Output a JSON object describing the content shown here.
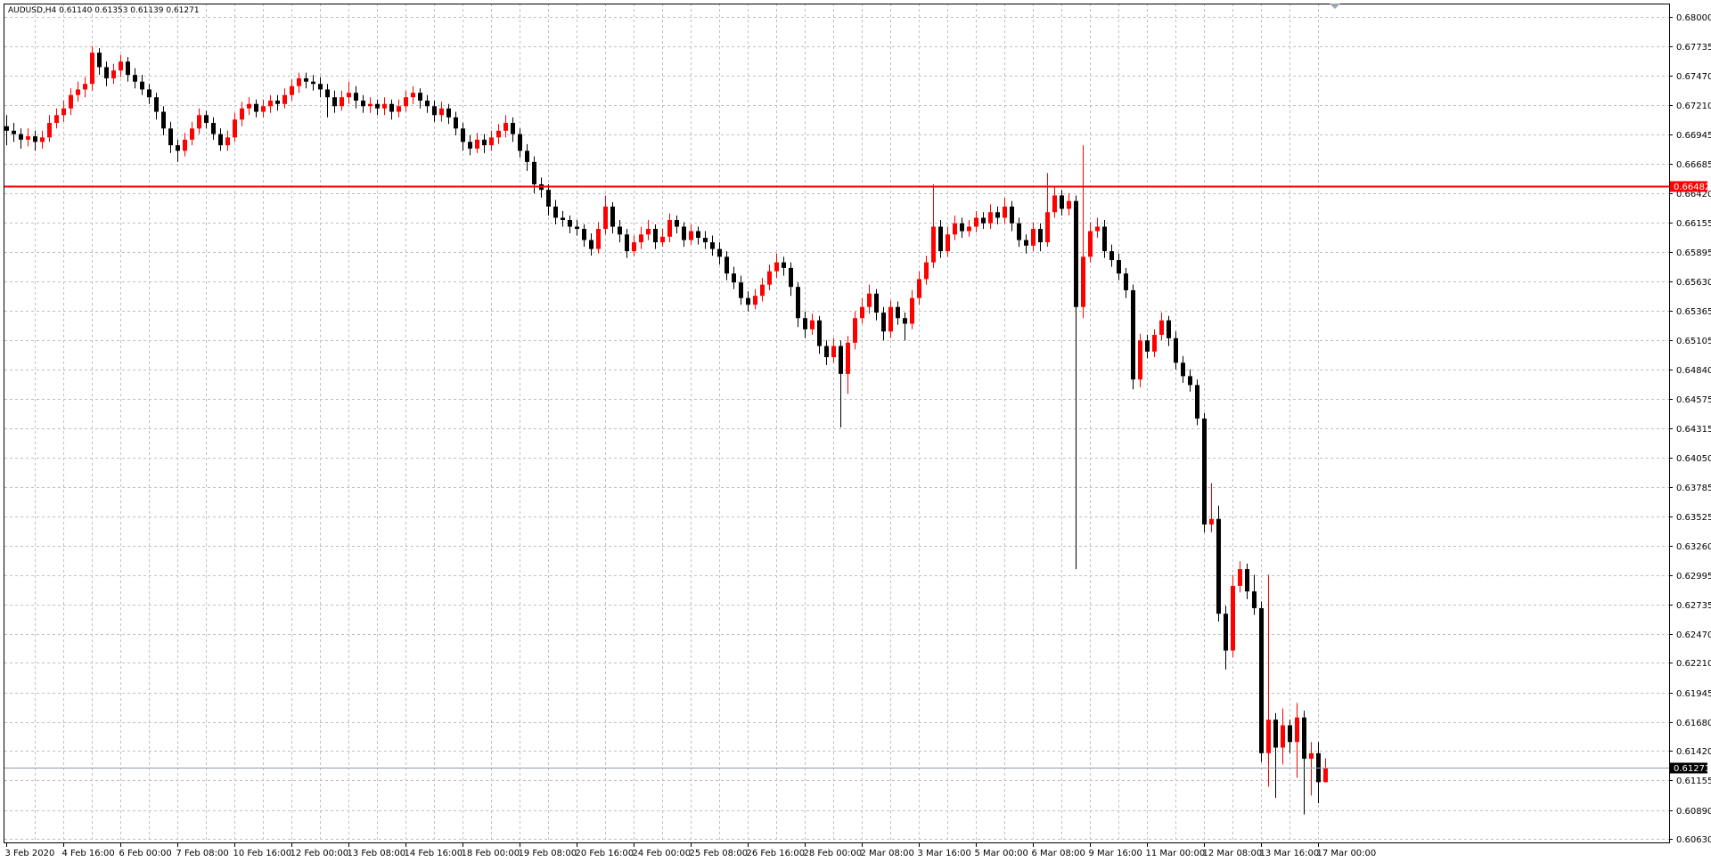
{
  "chart_data": {
    "type": "candlestick",
    "title": "AUDUSD,H4  0.61140 0.61353 0.61139 0.61271",
    "up_color": "#ff0000",
    "down_color": "#000000",
    "grid": true,
    "grid_color": "#c0c0c0",
    "ylim": [
      0.606,
      0.6812
    ],
    "yticks": [
      {
        "value": 0.68,
        "label": "0.68000"
      },
      {
        "value": 0.67735,
        "label": "0.67735"
      },
      {
        "value": 0.6747,
        "label": "0.67470"
      },
      {
        "value": 0.6721,
        "label": "0.67210"
      },
      {
        "value": 0.66945,
        "label": "0.66945"
      },
      {
        "value": 0.66685,
        "label": "0.66685"
      },
      {
        "value": 0.6642,
        "label": "0.66420"
      },
      {
        "value": 0.66155,
        "label": "0.66155"
      },
      {
        "value": 0.65895,
        "label": "0.65895"
      },
      {
        "value": 0.6563,
        "label": "0.65630"
      },
      {
        "value": 0.65365,
        "label": "0.65365"
      },
      {
        "value": 0.65105,
        "label": "0.65105"
      },
      {
        "value": 0.6484,
        "label": "0.64840"
      },
      {
        "value": 0.64575,
        "label": "0.64575"
      },
      {
        "value": 0.64315,
        "label": "0.64315"
      },
      {
        "value": 0.6405,
        "label": "0.64050"
      },
      {
        "value": 0.63785,
        "label": "0.63785"
      },
      {
        "value": 0.63525,
        "label": "0.63525"
      },
      {
        "value": 0.6326,
        "label": "0.63260"
      },
      {
        "value": 0.62995,
        "label": "0.62995"
      },
      {
        "value": 0.62735,
        "label": "0.62735"
      },
      {
        "value": 0.6247,
        "label": "0.62470"
      },
      {
        "value": 0.6221,
        "label": "0.62210"
      },
      {
        "value": 0.61945,
        "label": "0.61945"
      },
      {
        "value": 0.6168,
        "label": "0.61680"
      },
      {
        "value": 0.6142,
        "label": "0.61420"
      },
      {
        "value": 0.61155,
        "label": "0.61155"
      },
      {
        "value": 0.6089,
        "label": "0.60890"
      },
      {
        "value": 0.6063,
        "label": "0.60630"
      }
    ],
    "hlines": [
      {
        "value": 0.66482,
        "label": "0.66482",
        "color": "#ff0000"
      }
    ],
    "price_line": {
      "value": 0.61271,
      "label": "0.61271",
      "color": "#8c9aae"
    },
    "categories": [
      "3 Feb 2020",
      null,
      null,
      null,
      null,
      null,
      null,
      null,
      "4 Feb 16:00",
      null,
      null,
      null,
      null,
      null,
      null,
      null,
      "6 Feb 00:00",
      null,
      null,
      null,
      null,
      null,
      null,
      null,
      "7 Feb 08:00",
      null,
      null,
      null,
      null,
      null,
      null,
      null,
      "10 Feb 16:00",
      null,
      null,
      null,
      null,
      null,
      null,
      null,
      "12 Feb 00:00",
      null,
      null,
      null,
      null,
      null,
      null,
      null,
      "13 Feb 08:00",
      null,
      null,
      null,
      null,
      null,
      null,
      null,
      "14 Feb 16:00",
      null,
      null,
      null,
      null,
      null,
      null,
      null,
      "18 Feb 00:00",
      null,
      null,
      null,
      null,
      null,
      null,
      null,
      "19 Feb 08:00",
      null,
      null,
      null,
      null,
      null,
      null,
      null,
      "20 Feb 16:00",
      null,
      null,
      null,
      null,
      null,
      null,
      null,
      "24 Feb 00:00",
      null,
      null,
      null,
      null,
      null,
      null,
      null,
      "25 Feb 08:00",
      null,
      null,
      null,
      null,
      null,
      null,
      null,
      "26 Feb 16:00",
      null,
      null,
      null,
      null,
      null,
      null,
      null,
      "28 Feb 00:00",
      null,
      null,
      null,
      null,
      null,
      null,
      null,
      "2 Mar 08:00",
      null,
      null,
      null,
      null,
      null,
      null,
      null,
      "3 Mar 16:00",
      null,
      null,
      null,
      null,
      null,
      null,
      null,
      "5 Mar 00:00",
      null,
      null,
      null,
      null,
      null,
      null,
      null,
      "6 Mar 08:00",
      null,
      null,
      null,
      null,
      null,
      null,
      null,
      "9 Mar 16:00",
      null,
      null,
      null,
      null,
      null,
      null,
      null,
      "11 Mar 00:00",
      null,
      null,
      null,
      null,
      null,
      null,
      null,
      "12 Mar 08:00",
      null,
      null,
      null,
      null,
      null,
      null,
      null,
      "13 Mar 16:00",
      null,
      null,
      null,
      null,
      null,
      null,
      null,
      "17 Mar 00:00",
      null
    ],
    "ohlc": [
      [
        0.6702,
        0.6712,
        0.6685,
        0.6698
      ],
      [
        0.6698,
        0.6705,
        0.6688,
        0.6695
      ],
      [
        0.6695,
        0.67,
        0.6682,
        0.669
      ],
      [
        0.669,
        0.67,
        0.6684,
        0.6693
      ],
      [
        0.6693,
        0.6698,
        0.668,
        0.6688
      ],
      [
        0.6688,
        0.6698,
        0.6682,
        0.6692
      ],
      [
        0.6692,
        0.6712,
        0.6688,
        0.6705
      ],
      [
        0.6705,
        0.6718,
        0.67,
        0.6712
      ],
      [
        0.6712,
        0.6725,
        0.6706,
        0.6718
      ],
      [
        0.6718,
        0.6736,
        0.6712,
        0.673
      ],
      [
        0.673,
        0.6742,
        0.6724,
        0.6735
      ],
      [
        0.6735,
        0.6746,
        0.6728,
        0.674
      ],
      [
        0.674,
        0.6774,
        0.6734,
        0.6768
      ],
      [
        0.6768,
        0.6772,
        0.6748,
        0.6755
      ],
      [
        0.6755,
        0.676,
        0.6738,
        0.6745
      ],
      [
        0.6745,
        0.6758,
        0.674,
        0.6752
      ],
      [
        0.6752,
        0.6766,
        0.6746,
        0.676
      ],
      [
        0.676,
        0.6764,
        0.6742,
        0.6748
      ],
      [
        0.6748,
        0.6754,
        0.6736,
        0.6742
      ],
      [
        0.6742,
        0.6748,
        0.673,
        0.6735
      ],
      [
        0.6735,
        0.674,
        0.6722,
        0.6728
      ],
      [
        0.6728,
        0.6732,
        0.6708,
        0.6715
      ],
      [
        0.6715,
        0.672,
        0.6694,
        0.67
      ],
      [
        0.67,
        0.6706,
        0.6678,
        0.6685
      ],
      [
        0.6685,
        0.669,
        0.667,
        0.668
      ],
      [
        0.668,
        0.6696,
        0.6675,
        0.669
      ],
      [
        0.669,
        0.6706,
        0.6685,
        0.67
      ],
      [
        0.67,
        0.6718,
        0.6695,
        0.6712
      ],
      [
        0.6712,
        0.6716,
        0.67,
        0.6705
      ],
      [
        0.6705,
        0.671,
        0.669,
        0.6695
      ],
      [
        0.6695,
        0.67,
        0.668,
        0.6685
      ],
      [
        0.6685,
        0.6698,
        0.668,
        0.6692
      ],
      [
        0.6692,
        0.6714,
        0.6688,
        0.6708
      ],
      [
        0.6708,
        0.6724,
        0.6702,
        0.6718
      ],
      [
        0.6718,
        0.6728,
        0.6712,
        0.6722
      ],
      [
        0.6722,
        0.6726,
        0.671,
        0.6715
      ],
      [
        0.6715,
        0.6726,
        0.671,
        0.672
      ],
      [
        0.672,
        0.673,
        0.6714,
        0.6725
      ],
      [
        0.6725,
        0.673,
        0.6716,
        0.6722
      ],
      [
        0.6722,
        0.6736,
        0.6718,
        0.673
      ],
      [
        0.673,
        0.6744,
        0.6725,
        0.6738
      ],
      [
        0.6738,
        0.675,
        0.6732,
        0.6745
      ],
      [
        0.6745,
        0.675,
        0.6736,
        0.6742
      ],
      [
        0.6742,
        0.6748,
        0.6734,
        0.674
      ],
      [
        0.674,
        0.6746,
        0.6728,
        0.6735
      ],
      [
        0.6735,
        0.674,
        0.671,
        0.6728
      ],
      [
        0.6728,
        0.6734,
        0.6714,
        0.672
      ],
      [
        0.672,
        0.6734,
        0.6716,
        0.6728
      ],
      [
        0.6728,
        0.6742,
        0.6722,
        0.6732
      ],
      [
        0.6732,
        0.6738,
        0.6718,
        0.6725
      ],
      [
        0.6725,
        0.673,
        0.6714,
        0.672
      ],
      [
        0.672,
        0.6728,
        0.6714,
        0.6722
      ],
      [
        0.6722,
        0.6726,
        0.6712,
        0.6718
      ],
      [
        0.6718,
        0.6728,
        0.6712,
        0.6722
      ],
      [
        0.6722,
        0.6726,
        0.6708,
        0.6715
      ],
      [
        0.6715,
        0.6726,
        0.671,
        0.672
      ],
      [
        0.672,
        0.6734,
        0.6715,
        0.6728
      ],
      [
        0.6728,
        0.6738,
        0.6722,
        0.6732
      ],
      [
        0.6732,
        0.6736,
        0.6718,
        0.6725
      ],
      [
        0.6725,
        0.673,
        0.6714,
        0.672
      ],
      [
        0.672,
        0.6725,
        0.6706,
        0.6712
      ],
      [
        0.6712,
        0.6724,
        0.6706,
        0.6718
      ],
      [
        0.6718,
        0.6722,
        0.6704,
        0.671
      ],
      [
        0.671,
        0.6715,
        0.6694,
        0.67
      ],
      [
        0.67,
        0.6705,
        0.668,
        0.6688
      ],
      [
        0.6688,
        0.6694,
        0.6676,
        0.6682
      ],
      [
        0.6682,
        0.6696,
        0.6678,
        0.669
      ],
      [
        0.669,
        0.6695,
        0.6678,
        0.6685
      ],
      [
        0.6685,
        0.6698,
        0.668,
        0.6692
      ],
      [
        0.6692,
        0.6704,
        0.6686,
        0.6698
      ],
      [
        0.6698,
        0.6712,
        0.6692,
        0.6705
      ],
      [
        0.6705,
        0.671,
        0.6688,
        0.6695
      ],
      [
        0.6695,
        0.67,
        0.6674,
        0.668
      ],
      [
        0.668,
        0.6686,
        0.6662,
        0.667
      ],
      [
        0.667,
        0.6675,
        0.6642,
        0.665
      ],
      [
        0.665,
        0.6656,
        0.6638,
        0.6645
      ],
      [
        0.6645,
        0.665,
        0.6622,
        0.663
      ],
      [
        0.663,
        0.6636,
        0.6614,
        0.662
      ],
      [
        0.662,
        0.6626,
        0.6612,
        0.6618
      ],
      [
        0.6618,
        0.6622,
        0.6606,
        0.6612
      ],
      [
        0.6612,
        0.6618,
        0.6604,
        0.661
      ],
      [
        0.661,
        0.6614,
        0.6594,
        0.66
      ],
      [
        0.66,
        0.6606,
        0.6586,
        0.6592
      ],
      [
        0.6592,
        0.6616,
        0.6588,
        0.661
      ],
      [
        0.661,
        0.664,
        0.6605,
        0.663
      ],
      [
        0.663,
        0.6634,
        0.6606,
        0.6612
      ],
      [
        0.6612,
        0.6618,
        0.6598,
        0.6605
      ],
      [
        0.6605,
        0.661,
        0.6584,
        0.659
      ],
      [
        0.659,
        0.6604,
        0.6586,
        0.6598
      ],
      [
        0.6598,
        0.6612,
        0.6592,
        0.6605
      ],
      [
        0.6605,
        0.6618,
        0.66,
        0.661
      ],
      [
        0.661,
        0.6614,
        0.6592,
        0.6598
      ],
      [
        0.6598,
        0.661,
        0.6594,
        0.6603
      ],
      [
        0.6603,
        0.6624,
        0.6598,
        0.6618
      ],
      [
        0.6618,
        0.6622,
        0.6606,
        0.6612
      ],
      [
        0.6612,
        0.6616,
        0.6594,
        0.66
      ],
      [
        0.66,
        0.6614,
        0.6596,
        0.6608
      ],
      [
        0.6608,
        0.6612,
        0.6596,
        0.6602
      ],
      [
        0.6602,
        0.6608,
        0.6592,
        0.6598
      ],
      [
        0.6598,
        0.6604,
        0.6586,
        0.6592
      ],
      [
        0.6592,
        0.6598,
        0.6578,
        0.6585
      ],
      [
        0.6585,
        0.659,
        0.6564,
        0.657
      ],
      [
        0.657,
        0.6576,
        0.6556,
        0.6562
      ],
      [
        0.6562,
        0.6568,
        0.6542,
        0.6548
      ],
      [
        0.6548,
        0.6554,
        0.6536,
        0.6542
      ],
      [
        0.6542,
        0.6556,
        0.6538,
        0.655
      ],
      [
        0.655,
        0.6566,
        0.6545,
        0.656
      ],
      [
        0.656,
        0.6578,
        0.6555,
        0.6572
      ],
      [
        0.6572,
        0.6588,
        0.6566,
        0.658
      ],
      [
        0.658,
        0.6585,
        0.6568,
        0.6575
      ],
      [
        0.6575,
        0.658,
        0.655,
        0.6558
      ],
      [
        0.6558,
        0.6562,
        0.6522,
        0.653
      ],
      [
        0.653,
        0.6536,
        0.6512,
        0.652
      ],
      [
        0.652,
        0.6534,
        0.6515,
        0.6528
      ],
      [
        0.6528,
        0.6532,
        0.6498,
        0.6505
      ],
      [
        0.6505,
        0.651,
        0.6488,
        0.6495
      ],
      [
        0.6495,
        0.6512,
        0.649,
        0.6505
      ],
      [
        0.6505,
        0.651,
        0.6432,
        0.648
      ],
      [
        0.648,
        0.6514,
        0.6462,
        0.6508
      ],
      [
        0.6508,
        0.6536,
        0.6502,
        0.653
      ],
      [
        0.653,
        0.6548,
        0.6525,
        0.654
      ],
      [
        0.654,
        0.656,
        0.6534,
        0.6552
      ],
      [
        0.6552,
        0.6556,
        0.6528,
        0.6535
      ],
      [
        0.6535,
        0.654,
        0.651,
        0.6518
      ],
      [
        0.6518,
        0.6546,
        0.6512,
        0.654
      ],
      [
        0.654,
        0.6545,
        0.6524,
        0.653
      ],
      [
        0.653,
        0.6535,
        0.651,
        0.6525
      ],
      [
        0.6525,
        0.6555,
        0.652,
        0.6548
      ],
      [
        0.6548,
        0.6572,
        0.6542,
        0.6565
      ],
      [
        0.6565,
        0.6586,
        0.656,
        0.658
      ],
      [
        0.658,
        0.665,
        0.6575,
        0.6612
      ],
      [
        0.6612,
        0.6618,
        0.6584,
        0.659
      ],
      [
        0.659,
        0.6612,
        0.6585,
        0.6605
      ],
      [
        0.6605,
        0.6622,
        0.66,
        0.6615
      ],
      [
        0.6615,
        0.662,
        0.6602,
        0.6608
      ],
      [
        0.6608,
        0.6618,
        0.6603,
        0.6612
      ],
      [
        0.6612,
        0.6626,
        0.6607,
        0.662
      ],
      [
        0.662,
        0.6625,
        0.661,
        0.6615
      ],
      [
        0.6615,
        0.6632,
        0.661,
        0.6625
      ],
      [
        0.6625,
        0.663,
        0.6614,
        0.662
      ],
      [
        0.662,
        0.6638,
        0.6615,
        0.663
      ],
      [
        0.663,
        0.6635,
        0.6608,
        0.6615
      ],
      [
        0.6615,
        0.662,
        0.6594,
        0.66
      ],
      [
        0.66,
        0.6605,
        0.6588,
        0.6595
      ],
      [
        0.6595,
        0.6616,
        0.659,
        0.661
      ],
      [
        0.661,
        0.6615,
        0.659,
        0.6598
      ],
      [
        0.6598,
        0.666,
        0.6594,
        0.6625
      ],
      [
        0.6625,
        0.6648,
        0.662,
        0.664
      ],
      [
        0.664,
        0.6645,
        0.6622,
        0.6628
      ],
      [
        0.6628,
        0.6642,
        0.6622,
        0.6635
      ],
      [
        0.6635,
        0.664,
        0.6305,
        0.654
      ],
      [
        0.654,
        0.6685,
        0.653,
        0.6585
      ],
      [
        0.6585,
        0.6616,
        0.658,
        0.6608
      ],
      [
        0.6608,
        0.662,
        0.6602,
        0.6612
      ],
      [
        0.6612,
        0.6618,
        0.6584,
        0.659
      ],
      [
        0.659,
        0.6596,
        0.6576,
        0.6582
      ],
      [
        0.6582,
        0.6588,
        0.6564,
        0.657
      ],
      [
        0.657,
        0.6575,
        0.6548,
        0.6555
      ],
      [
        0.6555,
        0.656,
        0.6466,
        0.6475
      ],
      [
        0.6475,
        0.6516,
        0.6468,
        0.651
      ],
      [
        0.651,
        0.6515,
        0.6494,
        0.65
      ],
      [
        0.65,
        0.652,
        0.6495,
        0.6515
      ],
      [
        0.6515,
        0.6535,
        0.651,
        0.6528
      ],
      [
        0.6528,
        0.6532,
        0.6505,
        0.6512
      ],
      [
        0.6512,
        0.6518,
        0.6484,
        0.649
      ],
      [
        0.649,
        0.6496,
        0.6472,
        0.6478
      ],
      [
        0.6478,
        0.6484,
        0.6464,
        0.647
      ],
      [
        0.647,
        0.6475,
        0.6434,
        0.644
      ],
      [
        0.644,
        0.6445,
        0.6338,
        0.6345
      ],
      [
        0.6345,
        0.6382,
        0.6338,
        0.635
      ],
      [
        0.635,
        0.6362,
        0.6258,
        0.6265
      ],
      [
        0.6265,
        0.6272,
        0.6215,
        0.6232
      ],
      [
        0.6232,
        0.63,
        0.6226,
        0.629
      ],
      [
        0.629,
        0.6312,
        0.6284,
        0.6305
      ],
      [
        0.6305,
        0.631,
        0.6278,
        0.6285
      ],
      [
        0.6285,
        0.63,
        0.6264,
        0.627
      ],
      [
        0.627,
        0.6276,
        0.6132,
        0.614
      ],
      [
        0.614,
        0.63,
        0.611,
        0.617
      ],
      [
        0.617,
        0.6176,
        0.61,
        0.6145
      ],
      [
        0.6145,
        0.618,
        0.613,
        0.6165
      ],
      [
        0.6165,
        0.617,
        0.614,
        0.615
      ],
      [
        0.615,
        0.6185,
        0.6118,
        0.6172
      ],
      [
        0.6172,
        0.6178,
        0.6085,
        0.6135
      ],
      [
        0.6135,
        0.615,
        0.6102,
        0.614
      ],
      [
        0.614,
        0.615,
        0.6095,
        0.6114
      ],
      [
        0.6114,
        0.61353,
        0.61139,
        0.61271
      ]
    ]
  }
}
